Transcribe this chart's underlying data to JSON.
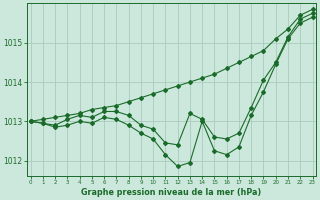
{
  "title": "Graphe pression niveau de la mer (hPa)",
  "x_labels": [
    0,
    1,
    2,
    3,
    4,
    5,
    6,
    7,
    8,
    9,
    10,
    11,
    12,
    13,
    14,
    15,
    16,
    17,
    18,
    19,
    20,
    21,
    22,
    23
  ],
  "bg_color": "#cce8dc",
  "grid_color": "#aaccbb",
  "line_color": "#1a6b2a",
  "ylim": [
    1011.6,
    1016.0
  ],
  "yticks": [
    1012,
    1013,
    1014,
    1015
  ],
  "series": {
    "upper": [
      1013.0,
      1013.05,
      1013.1,
      1013.15,
      1013.2,
      1013.3,
      1013.35,
      1013.4,
      1013.5,
      1013.6,
      1013.7,
      1013.8,
      1013.9,
      1014.0,
      1014.1,
      1014.2,
      1014.35,
      1014.5,
      1014.65,
      1014.8,
      1015.1,
      1015.35,
      1015.7,
      1015.85
    ],
    "mid": [
      1013.0,
      1012.95,
      1012.9,
      1013.05,
      1013.15,
      1013.1,
      1013.25,
      1013.25,
      1013.15,
      1012.9,
      1012.8,
      1012.45,
      1012.4,
      1013.2,
      1013.05,
      1012.6,
      1012.55,
      1012.7,
      1013.35,
      1014.05,
      1014.5,
      1015.15,
      1015.6,
      1015.75
    ],
    "lower": [
      1013.0,
      1012.95,
      1012.85,
      1012.9,
      1013.0,
      1012.95,
      1013.1,
      1013.05,
      1012.9,
      1012.7,
      1012.55,
      1012.15,
      1011.85,
      1011.95,
      1013.0,
      1012.25,
      1012.15,
      1012.35,
      1013.15,
      1013.75,
      1014.45,
      1015.1,
      1015.5,
      1015.65
    ]
  }
}
